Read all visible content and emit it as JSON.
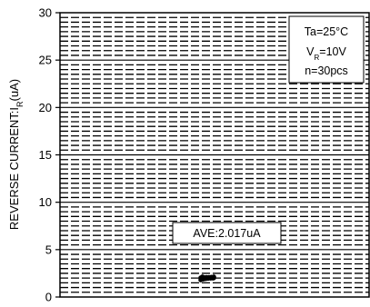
{
  "chart_data": {
    "type": "scatter",
    "title": "",
    "xlabel": "",
    "ylabel": "REVERSE CURRENT:",
    "ylabel_symbol": "I",
    "ylabel_subscript": "R",
    "ylabel_unit": "(uA)",
    "ylim": [
      0,
      30
    ],
    "y_ticks": [
      "0",
      "5",
      "10",
      "15",
      "20",
      "25",
      "30"
    ],
    "grid": true,
    "conditions": {
      "ta": "Ta=25°C",
      "vr_symbol": "V",
      "vr_subscript": "R",
      "vr_value": "=10V",
      "n": "n=30pcs"
    },
    "average_label": "AVE:2.017uA",
    "average": 2.017,
    "series": [
      {
        "values": [
          1.8,
          1.88,
          1.93,
          1.96,
          1.98,
          1.99,
          2.0,
          2.0,
          2.01,
          2.01,
          2.01,
          2.02,
          2.02,
          2.02,
          2.02,
          2.02,
          2.03,
          2.03,
          2.03,
          2.03,
          2.04,
          2.04,
          2.05,
          2.05,
          2.06,
          2.07,
          2.08,
          2.1,
          2.13,
          2.14
        ]
      }
    ]
  }
}
